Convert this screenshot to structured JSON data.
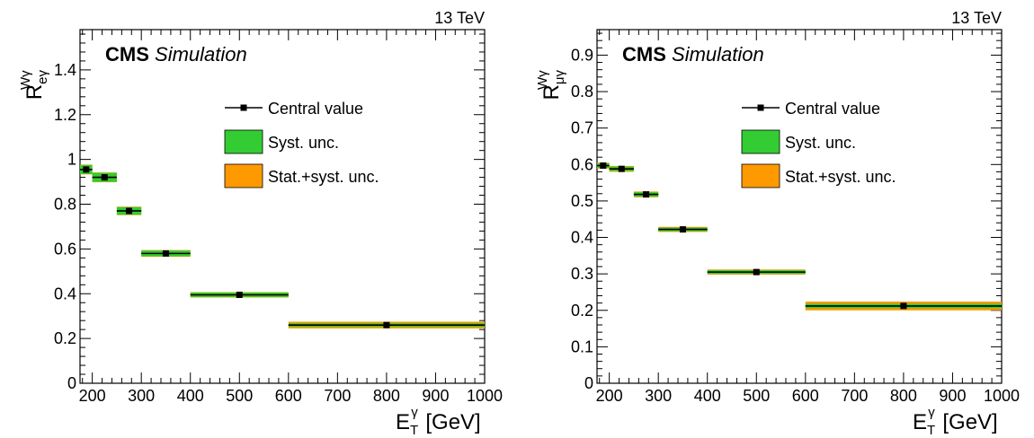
{
  "chart_data": [
    {
      "type": "scatter",
      "energy_label": "13 TeV",
      "cms_label": "CMS",
      "sim_label": "Simulation",
      "ylabel": {
        "base": "R",
        "sup": "Wγ",
        "sub": "eγ"
      },
      "xlabel": {
        "base": "E",
        "sup": "γ",
        "sub": "T",
        "unit": "[GeV]"
      },
      "xlim": [
        175,
        1000
      ],
      "ylim": [
        0,
        1.58
      ],
      "xticks": [
        200,
        300,
        400,
        500,
        600,
        700,
        800,
        900,
        1000
      ],
      "yticks": [
        0,
        0.2,
        0.4,
        0.6,
        0.8,
        1,
        1.2,
        1.4
      ],
      "ytick_labels": [
        "0",
        "0.2",
        "0.4",
        "0.6",
        "0.8",
        "1",
        "1.2",
        "1.4"
      ],
      "legend": [
        "Central value",
        "Syst. unc.",
        "Stat.+syst. unc."
      ],
      "colors": {
        "syst": "#33cc33",
        "stat_syst": "#ff9900",
        "marker": "#000000"
      },
      "points": [
        {
          "x_low": 175,
          "x_high": 200,
          "x": 187.5,
          "y": 0.955,
          "syst": 0.02,
          "total": 0.022
        },
        {
          "x_low": 200,
          "x_high": 250,
          "x": 225,
          "y": 0.92,
          "syst": 0.02,
          "total": 0.022
        },
        {
          "x_low": 250,
          "x_high": 300,
          "x": 275,
          "y": 0.77,
          "syst": 0.017,
          "total": 0.019
        },
        {
          "x_low": 300,
          "x_high": 400,
          "x": 350,
          "y": 0.58,
          "syst": 0.013,
          "total": 0.015
        },
        {
          "x_low": 400,
          "x_high": 600,
          "x": 500,
          "y": 0.395,
          "syst": 0.01,
          "total": 0.012
        },
        {
          "x_low": 600,
          "x_high": 1000,
          "x": 800,
          "y": 0.26,
          "syst": 0.008,
          "total": 0.015
        }
      ]
    },
    {
      "type": "scatter",
      "energy_label": "13 TeV",
      "cms_label": "CMS",
      "sim_label": "Simulation",
      "ylabel": {
        "base": "R",
        "sup": "Wγ",
        "sub": "μγ"
      },
      "xlabel": {
        "base": "E",
        "sup": "γ",
        "sub": "T",
        "unit": "[GeV]"
      },
      "xlim": [
        175,
        1000
      ],
      "ylim": [
        0,
        0.97
      ],
      "xticks": [
        200,
        300,
        400,
        500,
        600,
        700,
        800,
        900,
        1000
      ],
      "yticks": [
        0,
        0.1,
        0.2,
        0.3,
        0.4,
        0.5,
        0.6,
        0.7,
        0.8,
        0.9
      ],
      "ytick_labels": [
        "0",
        "0.1",
        "0.2",
        "0.3",
        "0.4",
        "0.5",
        "0.6",
        "0.7",
        "0.8",
        "0.9"
      ],
      "legend": [
        "Central value",
        "Syst. unc.",
        "Stat.+syst. unc."
      ],
      "colors": {
        "syst": "#33cc33",
        "stat_syst": "#ff9900",
        "marker": "#000000"
      },
      "points": [
        {
          "x_low": 175,
          "x_high": 200,
          "x": 187.5,
          "y": 0.597,
          "syst": 0.006,
          "total": 0.008
        },
        {
          "x_low": 200,
          "x_high": 250,
          "x": 225,
          "y": 0.588,
          "syst": 0.006,
          "total": 0.008
        },
        {
          "x_low": 250,
          "x_high": 300,
          "x": 275,
          "y": 0.518,
          "syst": 0.006,
          "total": 0.008
        },
        {
          "x_low": 300,
          "x_high": 400,
          "x": 350,
          "y": 0.422,
          "syst": 0.005,
          "total": 0.007
        },
        {
          "x_low": 400,
          "x_high": 600,
          "x": 500,
          "y": 0.305,
          "syst": 0.005,
          "total": 0.007
        },
        {
          "x_low": 600,
          "x_high": 1000,
          "x": 800,
          "y": 0.212,
          "syst": 0.006,
          "total": 0.012
        }
      ]
    }
  ]
}
